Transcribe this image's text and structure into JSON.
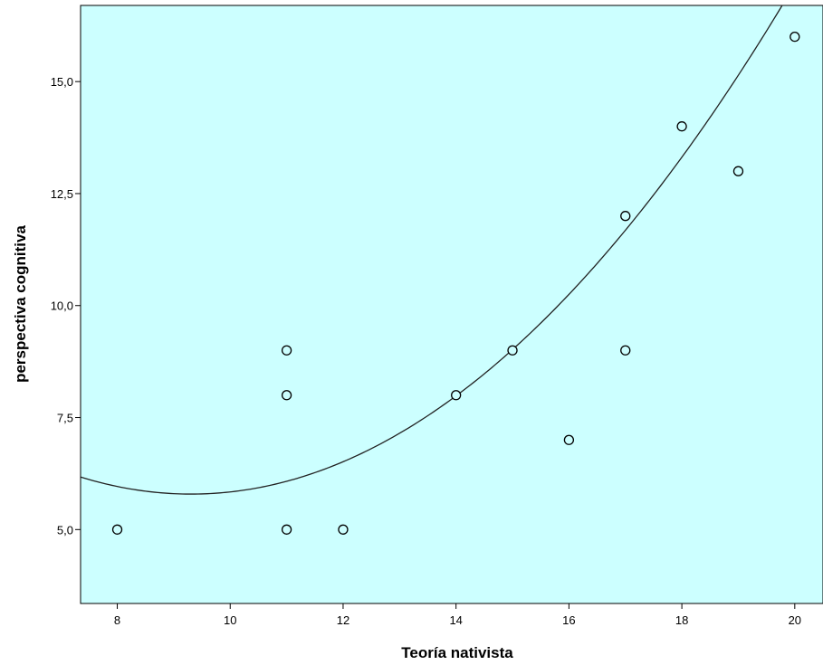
{
  "chart_data": {
    "type": "scatter",
    "title": "",
    "xlabel": "Teoría nativista",
    "ylabel": "perspectiva cognitiva",
    "xlim": [
      7.35,
      20.5
    ],
    "ylim": [
      3.35,
      16.7
    ],
    "x_ticks": [
      8,
      10,
      12,
      14,
      16,
      18,
      20
    ],
    "x_tick_labels": [
      "8",
      "10",
      "12",
      "14",
      "16",
      "18",
      "20"
    ],
    "y_ticks": [
      5,
      7.5,
      10,
      12.5,
      15
    ],
    "y_tick_labels": [
      "5,0",
      "7,5",
      "10,0",
      "12,5",
      "15,0"
    ],
    "grid": false,
    "legend": "none",
    "points": [
      {
        "x": 8,
        "y": 5
      },
      {
        "x": 11,
        "y": 9
      },
      {
        "x": 11,
        "y": 8
      },
      {
        "x": 11,
        "y": 5
      },
      {
        "x": 12,
        "y": 5
      },
      {
        "x": 14,
        "y": 8
      },
      {
        "x": 15,
        "y": 9
      },
      {
        "x": 16,
        "y": 7
      },
      {
        "x": 17,
        "y": 12
      },
      {
        "x": 17,
        "y": 9
      },
      {
        "x": 18,
        "y": 14
      },
      {
        "x": 19,
        "y": 13
      },
      {
        "x": 20,
        "y": 16
      }
    ],
    "fit_line": {
      "kind": "quadratic",
      "coefficients": {
        "a": 0.0995,
        "b": -1.852,
        "c": 14.41
      }
    },
    "colors": {
      "plot_background": "#ccffff",
      "marker_fill": "#ccffff",
      "marker_stroke": "#000000",
      "fit_line": "#222222",
      "axis": "#000000"
    }
  }
}
